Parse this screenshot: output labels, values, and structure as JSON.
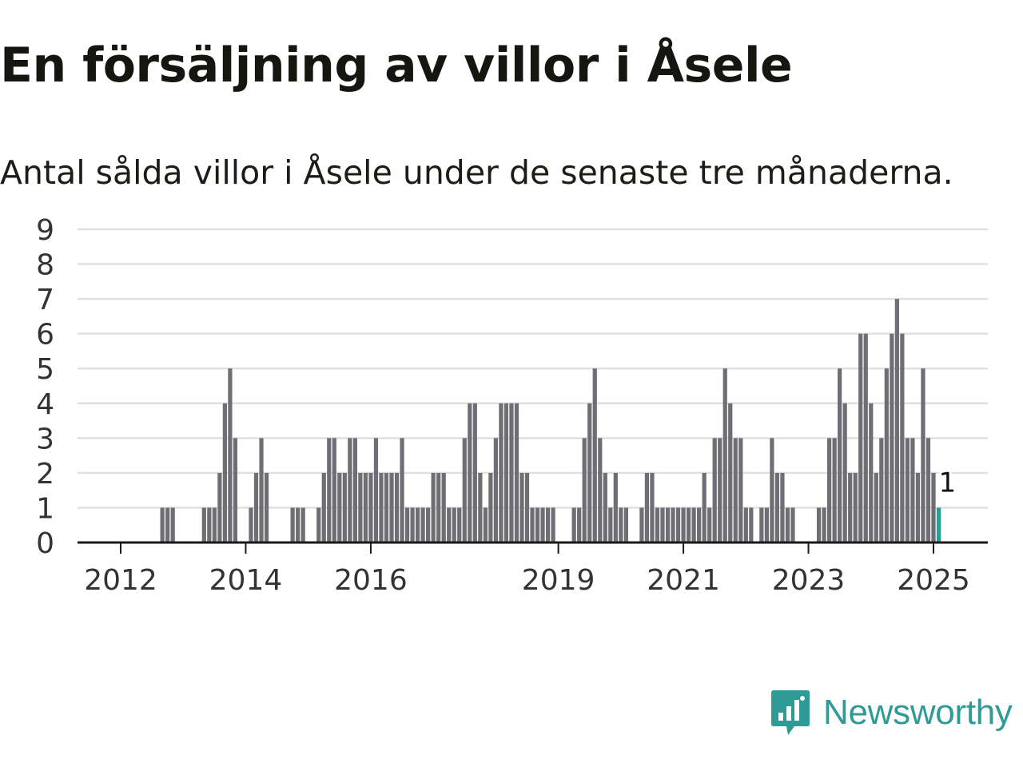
{
  "title": "En försäljning av villor i Åsele",
  "subtitle": "Antal sålda villor i Åsele under de senaste tre månaderna.",
  "brand": {
    "name": "Newsworthy",
    "icon": "newsworthy-logo-icon"
  },
  "colors": {
    "bar": "#6e6e74",
    "highlight": "#2a9d8f",
    "grid": "#e0e0e0",
    "axis": "#1a1a1a",
    "brand": "#2f9a96"
  },
  "chart_data": {
    "type": "bar",
    "title": "En försäljning av villor i Åsele",
    "xlabel": "",
    "ylabel": "",
    "ylim": [
      0,
      9
    ],
    "y_ticks": [
      "0",
      "1",
      "2",
      "3",
      "4",
      "5",
      "6",
      "7",
      "8",
      "9"
    ],
    "x_ticks": [
      {
        "label": "2012",
        "month": "2012-01"
      },
      {
        "label": "2014",
        "month": "2014-01"
      },
      {
        "label": "2016",
        "month": "2016-01"
      },
      {
        "label": "2019",
        "month": "2019-01"
      },
      {
        "label": "2021",
        "month": "2021-01"
      },
      {
        "label": "2023",
        "month": "2023-01"
      },
      {
        "label": "2025",
        "month": "2025-01"
      }
    ],
    "grid": true,
    "series": [
      {
        "values": [
          {
            "month": "2012-09",
            "value": 1
          },
          {
            "month": "2012-10",
            "value": 1
          },
          {
            "month": "2012-11",
            "value": 1
          },
          {
            "month": "2013-05",
            "value": 1
          },
          {
            "month": "2013-06",
            "value": 1
          },
          {
            "month": "2013-07",
            "value": 1
          },
          {
            "month": "2013-08",
            "value": 2
          },
          {
            "month": "2013-09",
            "value": 4
          },
          {
            "month": "2013-10",
            "value": 5
          },
          {
            "month": "2013-11",
            "value": 3
          },
          {
            "month": "2014-02",
            "value": 1
          },
          {
            "month": "2014-03",
            "value": 2
          },
          {
            "month": "2014-04",
            "value": 3
          },
          {
            "month": "2014-05",
            "value": 2
          },
          {
            "month": "2014-10",
            "value": 1
          },
          {
            "month": "2014-11",
            "value": 1
          },
          {
            "month": "2014-12",
            "value": 1
          },
          {
            "month": "2015-03",
            "value": 1
          },
          {
            "month": "2015-04",
            "value": 2
          },
          {
            "month": "2015-05",
            "value": 3
          },
          {
            "month": "2015-06",
            "value": 3
          },
          {
            "month": "2015-07",
            "value": 2
          },
          {
            "month": "2015-08",
            "value": 2
          },
          {
            "month": "2015-09",
            "value": 3
          },
          {
            "month": "2015-10",
            "value": 3
          },
          {
            "month": "2015-11",
            "value": 2
          },
          {
            "month": "2015-12",
            "value": 2
          },
          {
            "month": "2016-01",
            "value": 2
          },
          {
            "month": "2016-02",
            "value": 3
          },
          {
            "month": "2016-03",
            "value": 2
          },
          {
            "month": "2016-04",
            "value": 2
          },
          {
            "month": "2016-05",
            "value": 2
          },
          {
            "month": "2016-06",
            "value": 2
          },
          {
            "month": "2016-07",
            "value": 3
          },
          {
            "month": "2016-08",
            "value": 1
          },
          {
            "month": "2016-09",
            "value": 1
          },
          {
            "month": "2016-10",
            "value": 1
          },
          {
            "month": "2016-11",
            "value": 1
          },
          {
            "month": "2016-12",
            "value": 1
          },
          {
            "month": "2017-01",
            "value": 2
          },
          {
            "month": "2017-02",
            "value": 2
          },
          {
            "month": "2017-03",
            "value": 2
          },
          {
            "month": "2017-04",
            "value": 1
          },
          {
            "month": "2017-05",
            "value": 1
          },
          {
            "month": "2017-06",
            "value": 1
          },
          {
            "month": "2017-07",
            "value": 3
          },
          {
            "month": "2017-08",
            "value": 4
          },
          {
            "month": "2017-09",
            "value": 4
          },
          {
            "month": "2017-10",
            "value": 2
          },
          {
            "month": "2017-11",
            "value": 1
          },
          {
            "month": "2017-12",
            "value": 2
          },
          {
            "month": "2018-01",
            "value": 3
          },
          {
            "month": "2018-02",
            "value": 4
          },
          {
            "month": "2018-03",
            "value": 4
          },
          {
            "month": "2018-04",
            "value": 4
          },
          {
            "month": "2018-05",
            "value": 4
          },
          {
            "month": "2018-06",
            "value": 2
          },
          {
            "month": "2018-07",
            "value": 2
          },
          {
            "month": "2018-08",
            "value": 1
          },
          {
            "month": "2018-09",
            "value": 1
          },
          {
            "month": "2018-10",
            "value": 1
          },
          {
            "month": "2018-11",
            "value": 1
          },
          {
            "month": "2018-12",
            "value": 1
          },
          {
            "month": "2019-04",
            "value": 1
          },
          {
            "month": "2019-05",
            "value": 1
          },
          {
            "month": "2019-06",
            "value": 3
          },
          {
            "month": "2019-07",
            "value": 4
          },
          {
            "month": "2019-08",
            "value": 5
          },
          {
            "month": "2019-09",
            "value": 3
          },
          {
            "month": "2019-10",
            "value": 2
          },
          {
            "month": "2019-11",
            "value": 1
          },
          {
            "month": "2019-12",
            "value": 2
          },
          {
            "month": "2020-01",
            "value": 1
          },
          {
            "month": "2020-02",
            "value": 1
          },
          {
            "month": "2020-05",
            "value": 1
          },
          {
            "month": "2020-06",
            "value": 2
          },
          {
            "month": "2020-07",
            "value": 2
          },
          {
            "month": "2020-08",
            "value": 1
          },
          {
            "month": "2020-09",
            "value": 1
          },
          {
            "month": "2020-10",
            "value": 1
          },
          {
            "month": "2020-11",
            "value": 1
          },
          {
            "month": "2020-12",
            "value": 1
          },
          {
            "month": "2021-01",
            "value": 1
          },
          {
            "month": "2021-02",
            "value": 1
          },
          {
            "month": "2021-03",
            "value": 1
          },
          {
            "month": "2021-04",
            "value": 1
          },
          {
            "month": "2021-05",
            "value": 2
          },
          {
            "month": "2021-06",
            "value": 1
          },
          {
            "month": "2021-07",
            "value": 3
          },
          {
            "month": "2021-08",
            "value": 3
          },
          {
            "month": "2021-09",
            "value": 5
          },
          {
            "month": "2021-10",
            "value": 4
          },
          {
            "month": "2021-11",
            "value": 3
          },
          {
            "month": "2021-12",
            "value": 3
          },
          {
            "month": "2022-01",
            "value": 1
          },
          {
            "month": "2022-02",
            "value": 1
          },
          {
            "month": "2022-04",
            "value": 1
          },
          {
            "month": "2022-05",
            "value": 1
          },
          {
            "month": "2022-06",
            "value": 3
          },
          {
            "month": "2022-07",
            "value": 2
          },
          {
            "month": "2022-08",
            "value": 2
          },
          {
            "month": "2022-09",
            "value": 1
          },
          {
            "month": "2022-10",
            "value": 1
          },
          {
            "month": "2023-03",
            "value": 1
          },
          {
            "month": "2023-04",
            "value": 1
          },
          {
            "month": "2023-05",
            "value": 3
          },
          {
            "month": "2023-06",
            "value": 3
          },
          {
            "month": "2023-07",
            "value": 5
          },
          {
            "month": "2023-08",
            "value": 4
          },
          {
            "month": "2023-09",
            "value": 2
          },
          {
            "month": "2023-10",
            "value": 2
          },
          {
            "month": "2023-11",
            "value": 6
          },
          {
            "month": "2023-12",
            "value": 6
          },
          {
            "month": "2024-01",
            "value": 4
          },
          {
            "month": "2024-02",
            "value": 2
          },
          {
            "month": "2024-03",
            "value": 3
          },
          {
            "month": "2024-04",
            "value": 5
          },
          {
            "month": "2024-05",
            "value": 6
          },
          {
            "month": "2024-06",
            "value": 7
          },
          {
            "month": "2024-07",
            "value": 6
          },
          {
            "month": "2024-08",
            "value": 3
          },
          {
            "month": "2024-09",
            "value": 3
          },
          {
            "month": "2024-10",
            "value": 2
          },
          {
            "month": "2024-11",
            "value": 5
          },
          {
            "month": "2024-12",
            "value": 3
          },
          {
            "month": "2025-01",
            "value": 2
          },
          {
            "month": "2025-02",
            "value": 1
          }
        ]
      }
    ],
    "x_range": [
      "2011-09",
      "2025-09"
    ],
    "annotation": {
      "month": "2025-02",
      "text": "1"
    },
    "highlight_month": "2025-02"
  }
}
